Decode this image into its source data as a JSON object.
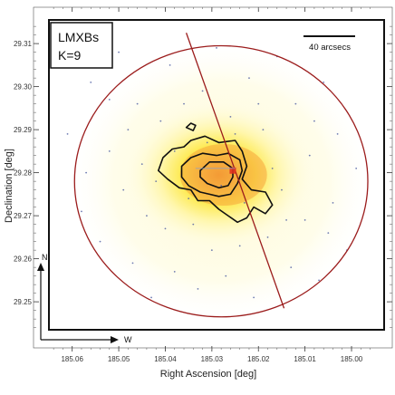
{
  "chart_data": {
    "type": "heatmap",
    "title": "",
    "xlabel": "Right Ascension [deg]",
    "ylabel": "Declination [deg]",
    "x_ticks": [
      185.06,
      185.05,
      185.04,
      185.03,
      185.02,
      185.01,
      185.0
    ],
    "y_ticks": [
      29.25,
      29.26,
      29.27,
      29.28,
      29.29,
      29.3,
      29.31
    ],
    "xlim": [
      185.065,
      184.993
    ],
    "ylim": [
      29.2435,
      29.3155
    ],
    "x_reversed": true,
    "grid": false,
    "legend": {
      "position": "top-left",
      "lines": [
        "LMXBs",
        "K=9"
      ]
    },
    "scale_bar": {
      "label": "40 arcsecs",
      "position": "top-right"
    },
    "compass": {
      "north": "N",
      "west": "W",
      "position": "bottom-left"
    },
    "circle": {
      "center_ra": 185.028,
      "center_dec": 29.278,
      "radius_deg": 0.0315,
      "color": "#9b1c1c"
    },
    "major_axis_line": {
      "start": [
        185.0355,
        29.3125
      ],
      "end": [
        185.0145,
        29.2485
      ],
      "color": "#9b1c1c"
    },
    "peak_marker": {
      "ra": 185.0255,
      "dec": 29.2805,
      "color": "#e0301e"
    },
    "contours": [
      {
        "level": 1,
        "points": [
          [
            185.0405,
            29.2835
          ],
          [
            185.0385,
            29.2855
          ],
          [
            185.036,
            29.286
          ],
          [
            185.0345,
            29.2875
          ],
          [
            185.0315,
            29.2885
          ],
          [
            185.0285,
            29.287
          ],
          [
            185.025,
            29.2875
          ],
          [
            185.0235,
            29.285
          ],
          [
            185.0225,
            29.2815
          ],
          [
            185.0235,
            29.2785
          ],
          [
            185.0215,
            29.276
          ],
          [
            185.0185,
            29.2755
          ],
          [
            185.017,
            29.2725
          ],
          [
            185.0185,
            29.2705
          ],
          [
            185.021,
            29.272
          ],
          [
            185.0225,
            29.2695
          ],
          [
            185.0245,
            29.2685
          ],
          [
            185.0265,
            29.27
          ],
          [
            185.0285,
            29.2715
          ],
          [
            185.0305,
            29.2735
          ],
          [
            185.033,
            29.2735
          ],
          [
            185.0345,
            29.276
          ],
          [
            185.037,
            29.2765
          ],
          [
            185.0395,
            29.2785
          ],
          [
            185.0415,
            29.2805
          ]
        ]
      },
      {
        "level": 2,
        "points": [
          [
            185.0365,
            29.2815
          ],
          [
            185.0345,
            29.2835
          ],
          [
            185.032,
            29.2845
          ],
          [
            185.029,
            29.284
          ],
          [
            185.0265,
            29.2845
          ],
          [
            185.024,
            29.283
          ],
          [
            185.0235,
            29.2805
          ],
          [
            185.0245,
            29.2775
          ],
          [
            185.026,
            29.275
          ],
          [
            185.0285,
            29.2745
          ],
          [
            185.0305,
            29.275
          ],
          [
            185.0325,
            29.2755
          ],
          [
            185.035,
            29.277
          ],
          [
            185.0365,
            29.279
          ]
        ]
      },
      {
        "level": 3,
        "points": [
          [
            185.0325,
            29.2805
          ],
          [
            185.0305,
            29.2825
          ],
          [
            185.0275,
            29.2825
          ],
          [
            185.0255,
            29.281
          ],
          [
            185.0255,
            29.279
          ],
          [
            185.0265,
            29.277
          ],
          [
            185.0285,
            29.2765
          ],
          [
            185.031,
            29.2775
          ],
          [
            185.0325,
            29.279
          ]
        ]
      },
      {
        "level": 1,
        "points": [
          [
            185.0355,
            29.2905
          ],
          [
            185.0345,
            29.2915
          ],
          [
            185.0335,
            29.291
          ],
          [
            185.034,
            29.2898
          ]
        ]
      }
    ],
    "sources": [
      [
        185.061,
        29.289
      ],
      [
        185.058,
        29.271
      ],
      [
        185.056,
        29.301
      ],
      [
        185.054,
        29.264
      ],
      [
        185.052,
        29.285
      ],
      [
        185.05,
        29.308
      ],
      [
        185.049,
        29.276
      ],
      [
        185.047,
        29.259
      ],
      [
        185.046,
        29.296
      ],
      [
        185.044,
        29.27
      ],
      [
        185.043,
        29.251
      ],
      [
        185.041,
        29.292
      ],
      [
        185.04,
        29.267
      ],
      [
        185.039,
        29.305
      ],
      [
        185.038,
        29.257
      ],
      [
        185.036,
        29.296
      ],
      [
        185.034,
        29.268
      ],
      [
        185.033,
        29.253
      ],
      [
        185.032,
        29.299
      ],
      [
        185.03,
        29.262
      ],
      [
        185.029,
        29.309
      ],
      [
        185.027,
        29.256
      ],
      [
        185.026,
        29.293
      ],
      [
        185.024,
        29.263
      ],
      [
        185.022,
        29.302
      ],
      [
        185.021,
        29.251
      ],
      [
        185.019,
        29.29
      ],
      [
        185.018,
        29.265
      ],
      [
        185.016,
        29.307
      ],
      [
        185.015,
        29.276
      ],
      [
        185.013,
        29.258
      ],
      [
        185.012,
        29.296
      ],
      [
        185.01,
        29.269
      ],
      [
        185.009,
        29.284
      ],
      [
        185.007,
        29.255
      ],
      [
        185.006,
        29.301
      ],
      [
        185.004,
        29.273
      ],
      [
        185.003,
        29.289
      ],
      [
        185.001,
        29.262
      ],
      [
        184.999,
        29.281
      ],
      [
        185.045,
        29.282
      ],
      [
        185.035,
        29.274
      ],
      [
        185.028,
        29.277
      ],
      [
        185.023,
        29.273
      ],
      [
        185.031,
        29.287
      ],
      [
        185.042,
        29.278
      ],
      [
        185.017,
        29.281
      ],
      [
        185.038,
        29.285
      ],
      [
        185.025,
        29.289
      ],
      [
        185.048,
        29.29
      ],
      [
        185.014,
        29.269
      ],
      [
        185.052,
        29.297
      ],
      [
        185.008,
        29.292
      ],
      [
        185.057,
        29.28
      ],
      [
        185.005,
        29.266
      ],
      [
        185.02,
        29.296
      ]
    ]
  }
}
